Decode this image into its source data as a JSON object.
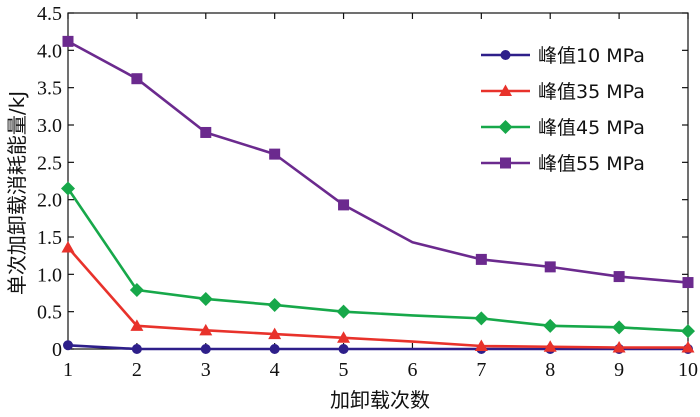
{
  "chart_data": {
    "type": "line",
    "xlabel": "加卸载次数",
    "ylabel": "单次加卸载消耗能量/kJ",
    "x": [
      1,
      2,
      3,
      4,
      5,
      6,
      7,
      8,
      9,
      10
    ],
    "xlim": [
      1,
      10
    ],
    "ylim": [
      0,
      4.5
    ],
    "x_ticks": [
      "1",
      "2",
      "3",
      "4",
      "5",
      "6",
      "7",
      "8",
      "9",
      "10"
    ],
    "y_ticks": [
      "0",
      "0.5",
      "1.0",
      "1.5",
      "2.0",
      "2.5",
      "3.0",
      "3.5",
      "4.0",
      "4.5"
    ],
    "grid": false,
    "legend_position": "top-right",
    "series": [
      {
        "name": "峰值10 MPa",
        "color": "#2e1f8a",
        "marker": "circle",
        "values": [
          0.05,
          0.0,
          0.0,
          0.0,
          0.0,
          0.0,
          0.0,
          0.0,
          0.0,
          0.0
        ],
        "marker_indices": [
          0,
          1,
          2,
          3,
          4,
          6,
          7,
          8,
          9
        ]
      },
      {
        "name": "峰值35 MPa",
        "color": "#e8322b",
        "marker": "triangle",
        "values": [
          1.36,
          0.31,
          0.25,
          0.2,
          0.15,
          0.1,
          0.04,
          0.03,
          0.02,
          0.02
        ],
        "marker_indices": [
          0,
          1,
          2,
          3,
          4,
          6,
          7,
          8,
          9
        ]
      },
      {
        "name": "峰值45 MPa",
        "color": "#17a84a",
        "marker": "diamond",
        "values": [
          2.15,
          0.79,
          0.67,
          0.59,
          0.5,
          0.45,
          0.41,
          0.31,
          0.29,
          0.24
        ],
        "marker_indices": [
          0,
          1,
          2,
          3,
          4,
          6,
          7,
          8,
          9
        ]
      },
      {
        "name": "峰值55 MPa",
        "color": "#6b2a8e",
        "marker": "square",
        "values": [
          4.12,
          3.62,
          2.9,
          2.61,
          1.93,
          1.43,
          1.2,
          1.1,
          0.97,
          0.89
        ],
        "marker_indices": [
          0,
          1,
          2,
          3,
          4,
          6,
          7,
          8,
          9
        ]
      }
    ]
  }
}
